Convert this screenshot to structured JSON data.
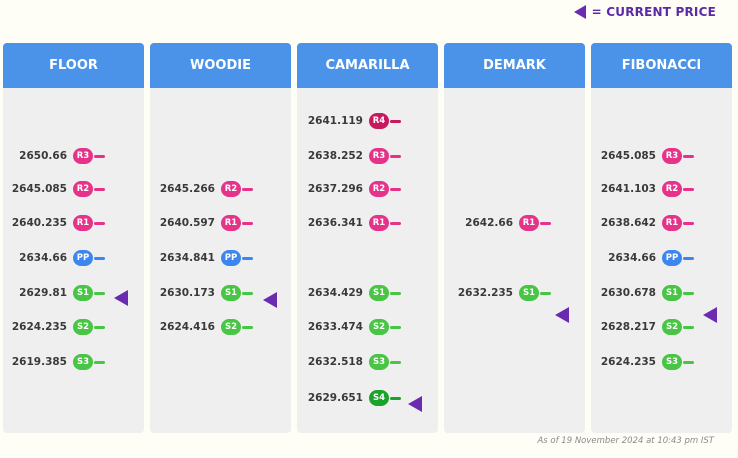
{
  "legend": {
    "label": "= CURRENT PRICE",
    "marker_color": "#6a2bb0"
  },
  "colors": {
    "header": "#4a93e8",
    "resistance": "#e6338a",
    "resistance_4": "#c8195e",
    "pivot": "#3d86f0",
    "support": "#48c544",
    "support_4": "#1aa329"
  },
  "columns": [
    {
      "title": "FLOOR",
      "levels": [
        {
          "value": "2650.66",
          "label": "R3"
        },
        {
          "value": "2645.085",
          "label": "R2"
        },
        {
          "value": "2640.235",
          "label": "R1"
        },
        {
          "value": "2634.66",
          "label": "PP"
        },
        {
          "value": "2629.81",
          "label": "S1"
        },
        {
          "value": "2624.235",
          "label": "S2"
        },
        {
          "value": "2619.385",
          "label": "S3"
        }
      ]
    },
    {
      "title": "WOODIE",
      "levels": [
        {
          "value": "2645.266",
          "label": "R2"
        },
        {
          "value": "2640.597",
          "label": "R1"
        },
        {
          "value": "2634.841",
          "label": "PP"
        },
        {
          "value": "2630.173",
          "label": "S1"
        },
        {
          "value": "2624.416",
          "label": "S2"
        }
      ]
    },
    {
      "title": "CAMARILLA",
      "levels": [
        {
          "value": "2641.119",
          "label": "R4"
        },
        {
          "value": "2638.252",
          "label": "R3"
        },
        {
          "value": "2637.296",
          "label": "R2"
        },
        {
          "value": "2636.341",
          "label": "R1"
        },
        {
          "value": "2634.429",
          "label": "S1"
        },
        {
          "value": "2633.474",
          "label": "S2"
        },
        {
          "value": "2632.518",
          "label": "S3"
        },
        {
          "value": "2629.651",
          "label": "S4"
        }
      ]
    },
    {
      "title": "DEMARK",
      "levels": [
        {
          "value": "2642.66",
          "label": "R1"
        },
        {
          "value": "2632.235",
          "label": "S1"
        }
      ]
    },
    {
      "title": "FIBONACCI",
      "levels": [
        {
          "value": "2645.085",
          "label": "R3"
        },
        {
          "value": "2641.103",
          "label": "R2"
        },
        {
          "value": "2638.642",
          "label": "R1"
        },
        {
          "value": "2634.66",
          "label": "PP"
        },
        {
          "value": "2630.678",
          "label": "S1"
        },
        {
          "value": "2628.217",
          "label": "S2"
        },
        {
          "value": "2624.235",
          "label": "S3"
        }
      ]
    }
  ],
  "footer": "As of 19 November 2024 at 10:43 pm IST"
}
